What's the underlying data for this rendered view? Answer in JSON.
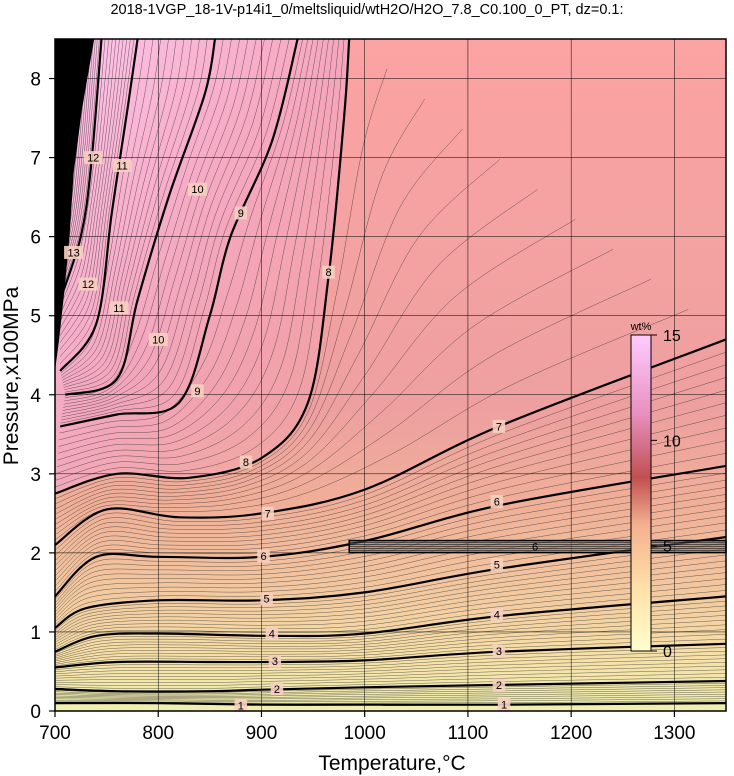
{
  "chart_data": {
    "type": "contour",
    "title": "2018-1VGP_18-1V-p14i1_0/meltsliquid/wtH2O/H2O_7.8_C0.100_0_PT, dz=0.1:",
    "xlabel": "Temperature,°C",
    "ylabel": "Pressure,x100MPa",
    "xlim": [
      700,
      1350
    ],
    "ylim": [
      0,
      8.5
    ],
    "x_ticks": [
      700,
      800,
      900,
      1000,
      1100,
      1200,
      1300
    ],
    "y_ticks": [
      0,
      1,
      2,
      3,
      4,
      5,
      6,
      7,
      8
    ],
    "grid": true,
    "contour_interval": 0.1,
    "colorbar": {
      "unit": "wt%",
      "ticks": [
        0,
        5,
        10,
        15
      ],
      "range": [
        0,
        15
      ],
      "colors": [
        "#ffffcc",
        "#ffe0a0",
        "#f8b090",
        "#f08c8c",
        "#e0a0c8",
        "#ffccff"
      ]
    },
    "labeled_contours": [
      {
        "level": 1,
        "points": [
          [
            700,
            0.1
          ],
          [
            800,
            0.1
          ],
          [
            900,
            0.08
          ],
          [
            1000,
            0.08
          ],
          [
            1130,
            0.08
          ],
          [
            1350,
            0.1
          ]
        ]
      },
      {
        "level": 2,
        "points": [
          [
            700,
            0.28
          ],
          [
            760,
            0.25
          ],
          [
            850,
            0.25
          ],
          [
            900,
            0.27
          ],
          [
            1000,
            0.3
          ],
          [
            1130,
            0.33
          ],
          [
            1350,
            0.38
          ]
        ]
      },
      {
        "level": 3,
        "points": [
          [
            700,
            0.55
          ],
          [
            760,
            0.62
          ],
          [
            850,
            0.62
          ],
          [
            910,
            0.62
          ],
          [
            1000,
            0.64
          ],
          [
            1130,
            0.75
          ],
          [
            1350,
            0.85
          ]
        ]
      },
      {
        "level": 4,
        "points": [
          [
            700,
            0.75
          ],
          [
            740,
            0.95
          ],
          [
            800,
            0.98
          ],
          [
            910,
            0.95
          ],
          [
            1000,
            0.98
          ],
          [
            1130,
            1.2
          ],
          [
            1350,
            1.45
          ]
        ]
      },
      {
        "level": 5,
        "points": [
          [
            700,
            1.05
          ],
          [
            730,
            1.3
          ],
          [
            800,
            1.4
          ],
          [
            900,
            1.4
          ],
          [
            1000,
            1.5
          ],
          [
            1130,
            1.8
          ],
          [
            1350,
            2.2
          ]
        ]
      },
      {
        "level": 6,
        "points": [
          [
            700,
            1.45
          ],
          [
            740,
            1.95
          ],
          [
            800,
            1.95
          ],
          [
            900,
            1.95
          ],
          [
            1000,
            2.15
          ],
          [
            1130,
            2.6
          ],
          [
            1350,
            3.1
          ]
        ]
      },
      {
        "level": 7,
        "points": [
          [
            700,
            2.1
          ],
          [
            750,
            2.55
          ],
          [
            820,
            2.45
          ],
          [
            900,
            2.5
          ],
          [
            1000,
            2.8
          ],
          [
            1130,
            3.6
          ],
          [
            1350,
            4.7
          ]
        ]
      },
      {
        "level": 8,
        "points": [
          [
            700,
            2.75
          ],
          [
            760,
            3.0
          ],
          [
            830,
            2.95
          ],
          [
            900,
            3.2
          ],
          [
            945,
            3.9
          ],
          [
            965,
            5.5
          ],
          [
            980,
            7.5
          ],
          [
            985,
            8.5
          ]
        ]
      },
      {
        "level": 9,
        "points": [
          [
            705,
            3.6
          ],
          [
            760,
            3.75
          ],
          [
            820,
            3.9
          ],
          [
            850,
            5.0
          ],
          [
            870,
            6.0
          ],
          [
            910,
            7.2
          ],
          [
            935,
            8.5
          ]
        ]
      },
      {
        "level": 10,
        "points": [
          [
            710,
            4.0
          ],
          [
            760,
            4.2
          ],
          [
            780,
            5.2
          ],
          [
            810,
            6.5
          ],
          [
            845,
            7.8
          ],
          [
            855,
            8.5
          ]
        ]
      },
      {
        "level": 11,
        "points": [
          [
            705,
            4.3
          ],
          [
            740,
            4.9
          ],
          [
            755,
            6.3
          ],
          [
            770,
            7.6
          ],
          [
            780,
            8.5
          ]
        ]
      },
      {
        "level": 12,
        "points": [
          [
            705,
            5.2
          ],
          [
            725,
            6.0
          ],
          [
            735,
            6.9
          ],
          [
            745,
            8.5
          ]
        ]
      },
      {
        "level": 13,
        "points": [
          [
            703,
            5.7
          ],
          [
            712,
            6.4
          ],
          [
            720,
            7.5
          ],
          [
            725,
            8.5
          ]
        ]
      }
    ],
    "contour_label_positions": [
      {
        "text": "1",
        "x": 880,
        "y": 0.07
      },
      {
        "text": "1",
        "x": 1135,
        "y": 0.08
      },
      {
        "text": "2",
        "x": 915,
        "y": 0.28
      },
      {
        "text": "2",
        "x": 1130,
        "y": 0.33
      },
      {
        "text": "3",
        "x": 913,
        "y": 0.63
      },
      {
        "text": "3",
        "x": 1130,
        "y": 0.76
      },
      {
        "text": "4",
        "x": 910,
        "y": 0.98
      },
      {
        "text": "4",
        "x": 1128,
        "y": 1.22
      },
      {
        "text": "5",
        "x": 905,
        "y": 1.42
      },
      {
        "text": "5",
        "x": 1128,
        "y": 1.85
      },
      {
        "text": "6",
        "x": 902,
        "y": 1.96
      },
      {
        "text": "6",
        "x": 1128,
        "y": 2.65
      },
      {
        "text": "7",
        "x": 906,
        "y": 2.5
      },
      {
        "text": "7",
        "x": 1130,
        "y": 3.6
      },
      {
        "text": "8",
        "x": 885,
        "y": 3.15
      },
      {
        "text": "8",
        "x": 965,
        "y": 5.55
      },
      {
        "text": "9",
        "x": 838,
        "y": 4.05
      },
      {
        "text": "9",
        "x": 880,
        "y": 6.3
      },
      {
        "text": "10",
        "x": 800,
        "y": 4.7
      },
      {
        "text": "10",
        "x": 838,
        "y": 6.6
      },
      {
        "text": "11",
        "x": 762,
        "y": 5.1
      },
      {
        "text": "11",
        "x": 765,
        "y": 6.9
      },
      {
        "text": "12",
        "x": 732,
        "y": 5.4
      },
      {
        "text": "12",
        "x": 737,
        "y": 7.0
      },
      {
        "text": "13",
        "x": 718,
        "y": 5.8
      }
    ],
    "band": {
      "x_range": [
        985,
        1350
      ],
      "y_center": 2.08,
      "label": "6"
    }
  }
}
